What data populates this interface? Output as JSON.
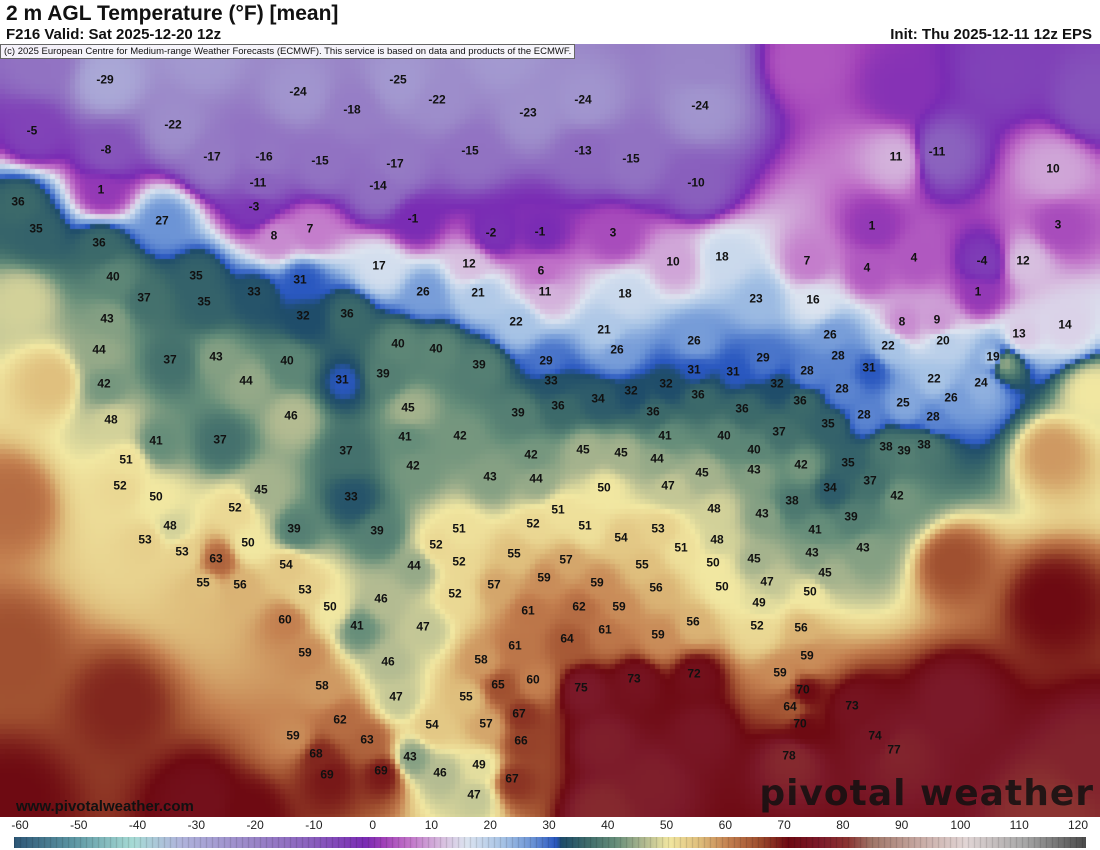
{
  "header": {
    "title": "2 m AGL Temperature (°F) [mean]",
    "valid": "F216 Valid: Sat 2025-12-20 12z",
    "init": "Init: Thu 2025-12-11 12z EPS"
  },
  "map": {
    "copyright": "(c) 2025 European Centre for Medium-range Weather Forecasts (ECMWF). This service is based on data and products of the ECMWF.",
    "watermark_url": "www.pivotalweather.com",
    "watermark_logo": "pivotal weather",
    "temperature_labels": [
      "-29",
      "-25",
      "-24",
      "-22",
      "-24",
      "-24",
      "-18",
      "-23",
      "-22",
      "-5",
      "-8",
      "-17",
      "-16",
      "-15",
      "-17",
      "-15",
      "-13",
      "-15",
      "11",
      "-11",
      "10",
      "-11",
      "-14",
      "-10",
      "1",
      "-3",
      "36",
      "27",
      "8",
      "7",
      "-1",
      "-2",
      "-1",
      "3",
      "3",
      "35",
      "36",
      "1",
      "40",
      "35",
      "31",
      "17",
      "12",
      "6",
      "10",
      "18",
      "7",
      "4",
      "4",
      "-4",
      "12",
      "37",
      "35",
      "33",
      "26",
      "21",
      "11",
      "18",
      "23",
      "16",
      "1",
      "43",
      "32",
      "36",
      "22",
      "21",
      "8",
      "9",
      "13",
      "14",
      "44",
      "37",
      "43",
      "40",
      "40",
      "40",
      "26",
      "26",
      "29",
      "26",
      "28",
      "22",
      "20",
      "19",
      "42",
      "44",
      "31",
      "39",
      "39",
      "29",
      "33",
      "31",
      "31",
      "32",
      "28",
      "31",
      "22",
      "24",
      "34",
      "32",
      "32",
      "36",
      "28",
      "36",
      "36",
      "36",
      "25",
      "26",
      "48",
      "46",
      "45",
      "39",
      "36",
      "28",
      "28",
      "38",
      "41",
      "37",
      "41",
      "42",
      "41",
      "40",
      "37",
      "35",
      "38",
      "39",
      "51",
      "37",
      "42",
      "42",
      "45",
      "45",
      "44",
      "40",
      "42",
      "35",
      "52",
      "45",
      "43",
      "44",
      "47",
      "45",
      "43",
      "34",
      "37",
      "42",
      "50",
      "33",
      "50",
      "52",
      "48",
      "38",
      "43",
      "39",
      "48",
      "39",
      "51",
      "52",
      "51",
      "51",
      "53",
      "41",
      "53",
      "50",
      "39",
      "52",
      "54",
      "48",
      "51",
      "43",
      "53",
      "63",
      "55",
      "57",
      "54",
      "52",
      "44",
      "55",
      "50",
      "45",
      "43",
      "45",
      "55",
      "56",
      "53",
      "57",
      "59",
      "59",
      "56",
      "50",
      "47",
      "52",
      "46",
      "50",
      "50",
      "49",
      "60",
      "61",
      "62",
      "59",
      "41",
      "47",
      "56",
      "52",
      "56",
      "59",
      "64",
      "61",
      "59",
      "61",
      "46",
      "58",
      "59",
      "58",
      "75",
      "73",
      "72",
      "65",
      "60",
      "59",
      "70",
      "47",
      "55",
      "64",
      "73",
      "62",
      "67",
      "70",
      "57",
      "54",
      "59",
      "63",
      "66",
      "74",
      "68",
      "43",
      "49",
      "77",
      "69",
      "69",
      "46",
      "67",
      "78",
      "47"
    ]
  },
  "colorbar": {
    "ticks": [
      "-60",
      "-50",
      "-40",
      "-30",
      "-20",
      "-10",
      "0",
      "10",
      "20",
      "30",
      "40",
      "50",
      "60",
      "70",
      "80",
      "90",
      "100",
      "110",
      "120"
    ],
    "range": [
      -60,
      120
    ],
    "stops": [
      [
        -60,
        "#2e5878"
      ],
      [
        -50,
        "#5e98a4"
      ],
      [
        -40,
        "#a8dcd6"
      ],
      [
        -32,
        "#b0b4dc"
      ],
      [
        -20,
        "#9a86c8"
      ],
      [
        -10,
        "#8a60be"
      ],
      [
        -1,
        "#7a2cb4"
      ],
      [
        2,
        "#a040b8"
      ],
      [
        6,
        "#c070c8"
      ],
      [
        12,
        "#d8c0e0"
      ],
      [
        16,
        "#dce4f0"
      ],
      [
        22,
        "#a8c4e6"
      ],
      [
        27,
        "#6c94d6"
      ],
      [
        31,
        "#2a58c0"
      ],
      [
        32,
        "#1f4d6a"
      ],
      [
        36,
        "#3c6a6a"
      ],
      [
        41,
        "#668e7a"
      ],
      [
        46,
        "#b4bc92"
      ],
      [
        50,
        "#f2e8a2"
      ],
      [
        55,
        "#e0c07e"
      ],
      [
        60,
        "#c48050"
      ],
      [
        65,
        "#a05030"
      ],
      [
        70,
        "#6e0a12"
      ],
      [
        75,
        "#7c1a2a"
      ],
      [
        80,
        "#8c3432"
      ],
      [
        84,
        "#a07668"
      ],
      [
        92,
        "#c8aaa4"
      ],
      [
        100,
        "#e2d6d6"
      ],
      [
        110,
        "#a6a6a6"
      ],
      [
        120,
        "#4c4c4c"
      ]
    ]
  }
}
